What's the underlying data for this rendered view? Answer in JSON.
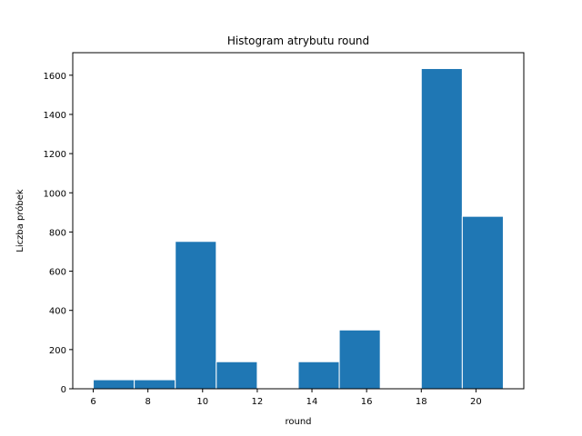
{
  "chart_data": {
    "type": "bar",
    "title": "Histogram atrybutu round",
    "xlabel": "round",
    "ylabel": "Liczba próbek",
    "xlim": [
      5.25,
      21.75
    ],
    "ylim": [
      0,
      1715
    ],
    "bar_color": "#1f77b4",
    "edge_color": "#ffffff",
    "grid": false,
    "bins": [
      {
        "x0": 6.0,
        "x1": 7.5,
        "count": 46
      },
      {
        "x0": 7.5,
        "x1": 9.0,
        "count": 46
      },
      {
        "x0": 9.0,
        "x1": 10.5,
        "count": 752
      },
      {
        "x0": 10.5,
        "x1": 12.0,
        "count": 138
      },
      {
        "x0": 12.0,
        "x1": 13.5,
        "count": 0
      },
      {
        "x0": 13.5,
        "x1": 15.0,
        "count": 138
      },
      {
        "x0": 15.0,
        "x1": 16.5,
        "count": 300
      },
      {
        "x0": 16.5,
        "x1": 18.0,
        "count": 0
      },
      {
        "x0": 18.0,
        "x1": 19.5,
        "count": 1634
      },
      {
        "x0": 19.5,
        "x1": 21.0,
        "count": 880
      }
    ],
    "xticks": [
      6,
      8,
      10,
      12,
      14,
      16,
      18,
      20
    ],
    "xtick_labels": [
      "6",
      "8",
      "10",
      "12",
      "14",
      "16",
      "18",
      "20"
    ],
    "yticks": [
      0,
      200,
      400,
      600,
      800,
      1000,
      1200,
      1400,
      1600
    ],
    "ytick_labels": [
      "0",
      "200",
      "400",
      "600",
      "800",
      "1000",
      "1200",
      "1400",
      "1600"
    ]
  }
}
